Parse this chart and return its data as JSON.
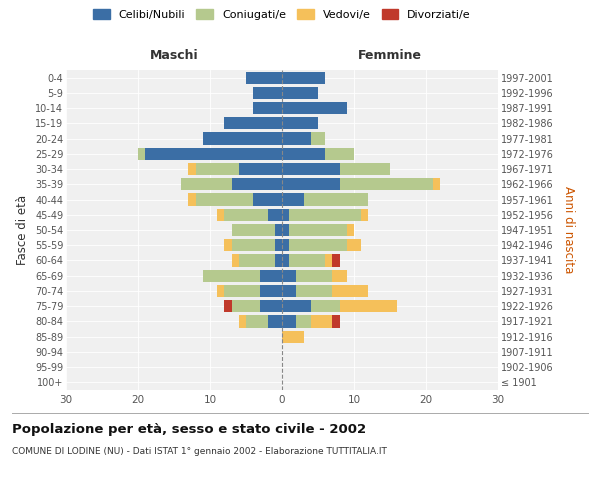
{
  "age_groups": [
    "100+",
    "95-99",
    "90-94",
    "85-89",
    "80-84",
    "75-79",
    "70-74",
    "65-69",
    "60-64",
    "55-59",
    "50-54",
    "45-49",
    "40-44",
    "35-39",
    "30-34",
    "25-29",
    "20-24",
    "15-19",
    "10-14",
    "5-9",
    "0-4"
  ],
  "birth_years": [
    "≤ 1901",
    "1902-1906",
    "1907-1911",
    "1912-1916",
    "1917-1921",
    "1922-1926",
    "1927-1931",
    "1932-1936",
    "1937-1941",
    "1942-1946",
    "1947-1951",
    "1952-1956",
    "1957-1961",
    "1962-1966",
    "1967-1971",
    "1972-1976",
    "1977-1981",
    "1982-1986",
    "1987-1991",
    "1992-1996",
    "1997-2001"
  ],
  "male_celibi": [
    0,
    0,
    0,
    0,
    2,
    3,
    3,
    3,
    1,
    1,
    1,
    2,
    4,
    7,
    6,
    19,
    11,
    8,
    4,
    4,
    5
  ],
  "male_coniugati": [
    0,
    0,
    0,
    0,
    3,
    4,
    5,
    8,
    5,
    6,
    6,
    6,
    8,
    7,
    6,
    1,
    0,
    0,
    0,
    0,
    0
  ],
  "male_vedovi": [
    0,
    0,
    0,
    0,
    1,
    0,
    1,
    0,
    1,
    1,
    0,
    1,
    1,
    0,
    1,
    0,
    0,
    0,
    0,
    0,
    0
  ],
  "male_divorziati": [
    0,
    0,
    0,
    0,
    0,
    1,
    0,
    0,
    0,
    0,
    0,
    0,
    0,
    0,
    0,
    0,
    0,
    0,
    0,
    0,
    0
  ],
  "female_nubili": [
    0,
    0,
    0,
    0,
    2,
    4,
    2,
    2,
    1,
    1,
    1,
    1,
    3,
    8,
    8,
    6,
    4,
    5,
    9,
    5,
    6
  ],
  "female_coniugate": [
    0,
    0,
    0,
    0,
    2,
    4,
    5,
    5,
    5,
    8,
    8,
    10,
    9,
    13,
    7,
    4,
    2,
    0,
    0,
    0,
    0
  ],
  "female_vedove": [
    0,
    0,
    0,
    3,
    3,
    8,
    5,
    2,
    1,
    2,
    1,
    1,
    0,
    1,
    0,
    0,
    0,
    0,
    0,
    0,
    0
  ],
  "female_divorziate": [
    0,
    0,
    0,
    0,
    1,
    0,
    0,
    0,
    1,
    0,
    0,
    0,
    0,
    0,
    0,
    0,
    0,
    0,
    0,
    0,
    0
  ],
  "color_celibi": "#3b6ea5",
  "color_coniugati": "#b5c98e",
  "color_vedovi": "#f5c05a",
  "color_divorziati": "#c0392b",
  "title": "Popolazione per età, sesso e stato civile - 2002",
  "subtitle": "COMUNE DI LODINE (NU) - Dati ISTAT 1° gennaio 2002 - Elaborazione TUTTITALIA.IT",
  "xlabel_left": "Maschi",
  "xlabel_right": "Femmine",
  "ylabel_left": "Fasce di età",
  "ylabel_right": "Anni di nascita",
  "xlim": 30,
  "background_color": "#ffffff",
  "facecolor": "#f0f0f0"
}
